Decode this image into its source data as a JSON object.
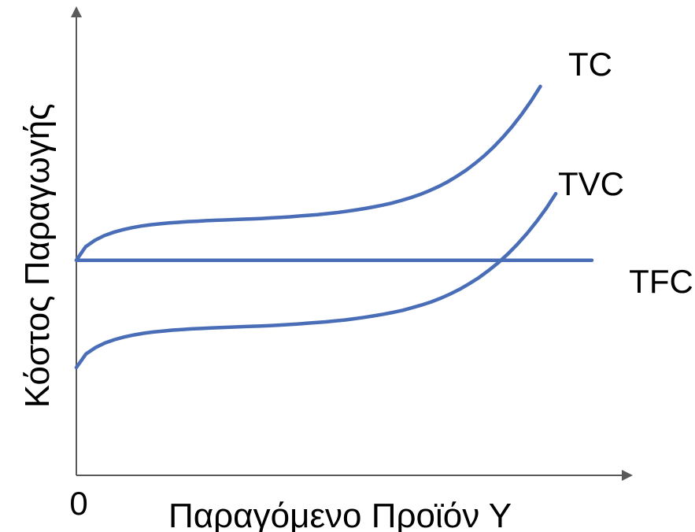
{
  "chart_data": {
    "type": "line",
    "title": "",
    "xlabel": "Παραγόμενο Προϊόν Υ",
    "ylabel": "Κόστος Παραγωγής",
    "origin_label": "0",
    "grid": false,
    "legend": "none",
    "colors": {
      "series": "#4a6db8",
      "axis": "#595959"
    },
    "series": [
      {
        "name": "TC",
        "x": [
          0,
          2,
          4,
          6,
          8,
          10,
          12,
          14,
          16,
          18,
          20,
          22,
          24,
          26,
          28,
          30,
          32,
          34,
          36,
          38,
          40,
          42,
          44,
          46,
          48,
          50,
          52,
          54,
          56,
          58,
          60,
          62,
          64,
          66,
          68,
          70,
          72,
          74,
          76,
          78,
          80,
          82,
          84,
          86,
          88,
          90,
          92,
          94,
          96,
          98,
          100
        ],
        "y": [
          58.0,
          65.3,
          68.8,
          71.3,
          73.1,
          74.5,
          75.6,
          76.5,
          77.2,
          77.7,
          78.2,
          78.5,
          78.9,
          79.1,
          79.4,
          79.6,
          79.8,
          80.0,
          80.2,
          80.4,
          80.6,
          80.9,
          81.2,
          81.5,
          81.9,
          82.3,
          82.7,
          83.2,
          83.7,
          84.4,
          85.1,
          85.9,
          86.8,
          87.8,
          88.9,
          90.3,
          91.8,
          93.5,
          95.5,
          97.8,
          100.4,
          103.4,
          106.7,
          110.5,
          114.7,
          119.4,
          124.7,
          130.5,
          137.0,
          144.1,
          152.0
        ]
      },
      {
        "name": "TVC",
        "x": [
          0,
          2,
          4,
          6,
          8,
          10,
          12,
          14,
          16,
          18,
          20,
          22,
          24,
          26,
          28,
          30,
          32,
          34,
          36,
          38,
          40,
          42,
          44,
          46,
          48,
          50,
          52,
          54,
          56,
          58,
          60,
          62,
          64,
          66,
          68,
          70,
          72,
          74,
          76,
          78,
          80,
          82,
          84,
          86,
          88,
          90,
          92,
          94,
          96,
          98,
          100
        ],
        "y": [
          0.0,
          7.3,
          10.8,
          13.3,
          15.1,
          16.5,
          17.6,
          18.5,
          19.2,
          19.7,
          20.2,
          20.5,
          20.9,
          21.1,
          21.4,
          21.6,
          21.8,
          22.0,
          22.2,
          22.4,
          22.6,
          22.9,
          23.2,
          23.5,
          23.9,
          24.3,
          24.7,
          25.2,
          25.7,
          26.4,
          27.1,
          27.9,
          28.8,
          29.8,
          30.9,
          32.3,
          33.8,
          35.5,
          37.5,
          39.8,
          42.4,
          45.4,
          48.7,
          52.5,
          56.7,
          61.4,
          66.7,
          72.5,
          79.0,
          86.1,
          94.0
        ]
      },
      {
        "name": "TFC",
        "x": [
          0,
          100
        ],
        "y": [
          58.0,
          58.0
        ]
      }
    ]
  }
}
